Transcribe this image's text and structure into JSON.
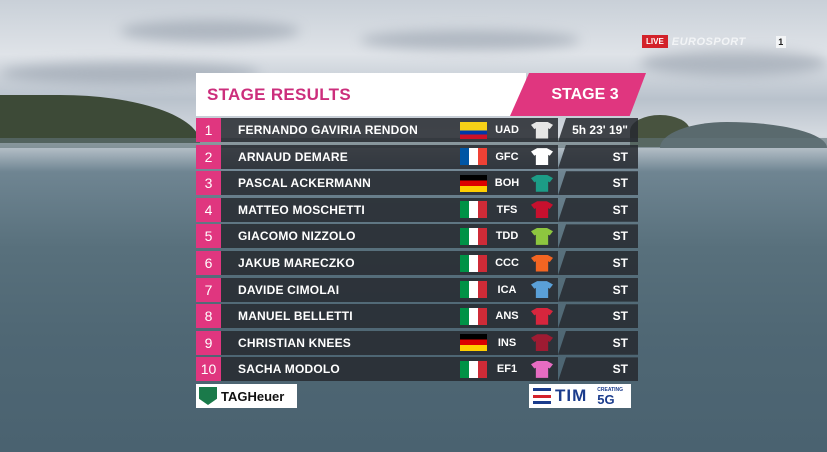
{
  "broadcast": {
    "live_label": "LIVE",
    "channel_name": "EUROSPORT",
    "channel_number": "1"
  },
  "header": {
    "title": "STAGE RESULTS",
    "stage": "STAGE 3"
  },
  "results": [
    {
      "pos": "1",
      "name": "FERNANDO GAVIRIA RENDON",
      "flag": "colombia-flag",
      "team": "UAD",
      "jersey_color": "#e6e6e6",
      "time": "5h 23' 19\""
    },
    {
      "pos": "2",
      "name": "ARNAUD DEMARE",
      "flag": "france-flag",
      "team": "GFC",
      "jersey_color": "#ffffff",
      "time": "ST"
    },
    {
      "pos": "3",
      "name": "PASCAL ACKERMANN",
      "flag": "germany-flag",
      "team": "BOH",
      "jersey_color": "#1c9c86",
      "time": "ST"
    },
    {
      "pos": "4",
      "name": "MATTEO MOSCHETTI",
      "flag": "italy-flag",
      "team": "TFS",
      "jersey_color": "#c8102e",
      "time": "ST"
    },
    {
      "pos": "5",
      "name": "GIACOMO NIZZOLO",
      "flag": "italy-flag",
      "team": "TDD",
      "jersey_color": "#8dc63f",
      "time": "ST"
    },
    {
      "pos": "6",
      "name": "JAKUB MARECZKO",
      "flag": "italy-flag",
      "team": "CCC",
      "jersey_color": "#f26522",
      "time": "ST"
    },
    {
      "pos": "7",
      "name": "DAVIDE CIMOLAI",
      "flag": "italy-flag",
      "team": "ICA",
      "jersey_color": "#5aa0d8",
      "time": "ST"
    },
    {
      "pos": "8",
      "name": "MANUEL BELLETTI",
      "flag": "italy-flag",
      "team": "ANS",
      "jersey_color": "#d7263d",
      "time": "ST"
    },
    {
      "pos": "9",
      "name": "CHRISTIAN KNEES",
      "flag": "germany-flag",
      "team": "INS",
      "jersey_color": "#9e1b32",
      "time": "ST"
    },
    {
      "pos": "10",
      "name": "SACHA MODOLO",
      "flag": "italy-flag",
      "team": "EF1",
      "jersey_color": "#e66cc2",
      "time": "ST"
    }
  ],
  "sponsors": {
    "left": "TAGHeuer",
    "right": "TIM",
    "right_sub_small": "CREATING",
    "right_sub_big": "5G"
  },
  "colors": {
    "accent": "#e0367f",
    "row_bg": "#262a30"
  }
}
